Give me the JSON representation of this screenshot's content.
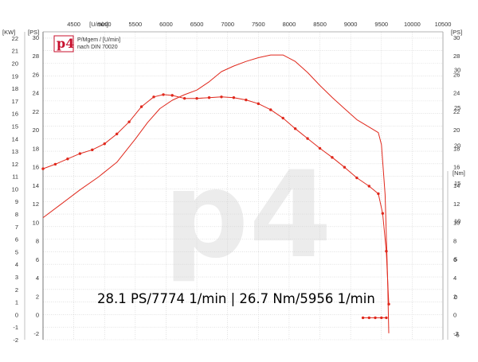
{
  "logo": {
    "text": "p4"
  },
  "watermark": {
    "text": "p4"
  },
  "legend": {
    "line1": "P/Mgem / [U/min]",
    "line2": "nach DIN 70020"
  },
  "annotation": "28.1 PS/7774 1/min | 26.7 Nm/5956 1/min",
  "colors": {
    "series": "#e0281c",
    "grid": "#cfcfcf",
    "axis": "#555555",
    "frame": "#9a9a9a"
  },
  "chart_data": {
    "type": "line",
    "grid": true,
    "x_axis": {
      "unit_label": "[U/min]",
      "min": 4000,
      "max": 10500,
      "ticks": [
        4500,
        5000,
        5500,
        6000,
        6500,
        7000,
        7500,
        8000,
        8500,
        9000,
        9500,
        10000,
        10500
      ]
    },
    "y_axis_kw": {
      "unit_label": "[KW]",
      "min": -2,
      "max": 22.5,
      "ticks": [
        -2,
        -1,
        0,
        1,
        2,
        3,
        4,
        5,
        6,
        7,
        8,
        9,
        10,
        11,
        12,
        13,
        14,
        15,
        16,
        17,
        18,
        19,
        20,
        21,
        22
      ]
    },
    "y_axis_ps": {
      "unit_label": "[PS]",
      "min": -2.7,
      "max": 30.6,
      "ticks": [
        -2,
        0,
        2,
        4,
        6,
        8,
        10,
        12,
        14,
        16,
        18,
        20,
        22,
        24,
        26,
        28,
        30
      ]
    },
    "y_axis_nm": {
      "unit_label": "[Nm]",
      "min": -5.7,
      "max": 35,
      "ticks": [
        -5,
        0,
        5,
        10,
        15,
        20,
        25,
        30
      ]
    },
    "series": [
      {
        "axis": "ps",
        "markers": false,
        "x": [
          4000,
          4300,
          4600,
          4900,
          5200,
          5500,
          5700,
          5900,
          6100,
          6300,
          6500,
          6700,
          6900,
          7100,
          7300,
          7500,
          7700,
          7774,
          7900,
          8100,
          8300,
          8500,
          8700,
          8900,
          9100,
          9300,
          9450,
          9500,
          9560,
          9600,
          9620
        ],
        "y": [
          10.5,
          12.0,
          13.5,
          14.9,
          16.5,
          19.0,
          20.8,
          22.3,
          23.2,
          23.8,
          24.3,
          25.2,
          26.3,
          26.9,
          27.4,
          27.8,
          28.1,
          28.1,
          28.1,
          27.4,
          26.2,
          24.8,
          23.5,
          22.3,
          21.1,
          20.3,
          19.7,
          18.4,
          13.0,
          4.0,
          -2.0
        ]
      },
      {
        "axis": "nm",
        "markers": true,
        "x": [
          4000,
          4200,
          4400,
          4600,
          4800,
          5000,
          5200,
          5400,
          5600,
          5800,
          5956,
          6100,
          6300,
          6500,
          6700,
          6900,
          7100,
          7300,
          7500,
          7700,
          7900,
          8100,
          8300,
          8500,
          8700,
          8900,
          9100,
          9300,
          9450,
          9520,
          9580,
          9620
        ],
        "y": [
          16.9,
          17.5,
          18.2,
          18.9,
          19.4,
          20.2,
          21.5,
          23.1,
          25.1,
          26.4,
          26.7,
          26.6,
          26.2,
          26.2,
          26.3,
          26.4,
          26.3,
          26.0,
          25.5,
          24.7,
          23.6,
          22.2,
          20.9,
          19.6,
          18.4,
          17.1,
          15.7,
          14.6,
          13.6,
          11.0,
          6.0,
          -1.0
        ]
      },
      {
        "axis": "nm",
        "markers": true,
        "x": [
          9200,
          9300,
          9400,
          9500,
          9580
        ],
        "y": [
          -2.8,
          -2.8,
          -2.8,
          -2.8,
          -2.8
        ]
      }
    ]
  }
}
